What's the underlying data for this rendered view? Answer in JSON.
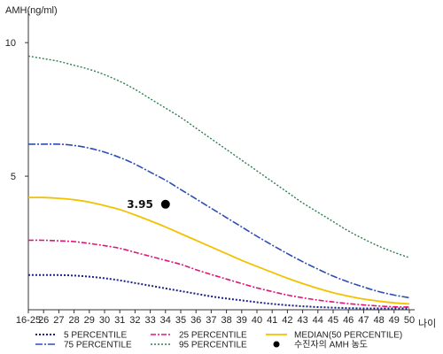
{
  "chart_data": {
    "type": "line",
    "ylabel": "AMH(ng/ml)",
    "xlabel": "나이",
    "ylim": [
      0,
      11
    ],
    "yticks": [
      5,
      10
    ],
    "categories": [
      "16-25",
      "26",
      "27",
      "28",
      "29",
      "30",
      "31",
      "32",
      "33",
      "34",
      "35",
      "36",
      "37",
      "38",
      "39",
      "40",
      "41",
      "42",
      "43",
      "44",
      "45",
      "46",
      "47",
      "48",
      "49",
      "50"
    ],
    "series": [
      {
        "name": "5 PERCENTILE",
        "color": "#1a237e",
        "dash": "2,2",
        "width": 2,
        "values": [
          1.3,
          1.3,
          1.3,
          1.28,
          1.24,
          1.18,
          1.1,
          1.0,
          0.9,
          0.8,
          0.7,
          0.6,
          0.5,
          0.42,
          0.35,
          0.28,
          0.22,
          0.17,
          0.13,
          0.1,
          0.08,
          0.06,
          0.05,
          0.05,
          0.05,
          0.05
        ]
      },
      {
        "name": "25 PERCENTILE",
        "color": "#e0157a",
        "dash": "6,2,2,2",
        "width": 1.6,
        "values": [
          2.6,
          2.6,
          2.58,
          2.55,
          2.48,
          2.4,
          2.3,
          2.15,
          2.0,
          1.85,
          1.7,
          1.5,
          1.32,
          1.15,
          0.98,
          0.82,
          0.68,
          0.55,
          0.45,
          0.36,
          0.29,
          0.23,
          0.18,
          0.14,
          0.11,
          0.1
        ]
      },
      {
        "name": "MEDIAN(50 PERCENTILE)",
        "color": "#f2c200",
        "dash": "",
        "width": 1.8,
        "values": [
          4.2,
          4.2,
          4.17,
          4.12,
          4.03,
          3.9,
          3.75,
          3.55,
          3.33,
          3.1,
          2.85,
          2.6,
          2.35,
          2.1,
          1.85,
          1.62,
          1.4,
          1.18,
          0.98,
          0.8,
          0.64,
          0.51,
          0.4,
          0.32,
          0.26,
          0.22
        ]
      },
      {
        "name": "75 PERCENTILE",
        "color": "#2b4db8",
        "dash": "8,2,2,2",
        "width": 1.6,
        "values": [
          6.2,
          6.2,
          6.2,
          6.15,
          6.05,
          5.9,
          5.7,
          5.45,
          5.15,
          4.85,
          4.5,
          4.15,
          3.8,
          3.45,
          3.1,
          2.75,
          2.42,
          2.1,
          1.8,
          1.52,
          1.26,
          1.04,
          0.85,
          0.68,
          0.55,
          0.45
        ]
      },
      {
        "name": "95 PERCENTILE",
        "color": "#2e7d4f",
        "dash": "2,2",
        "width": 1.4,
        "values": [
          9.5,
          9.4,
          9.3,
          9.15,
          9.0,
          8.8,
          8.55,
          8.25,
          7.9,
          7.55,
          7.2,
          6.8,
          6.4,
          6.0,
          5.6,
          5.2,
          4.8,
          4.4,
          4.0,
          3.65,
          3.3,
          2.95,
          2.65,
          2.38,
          2.15,
          1.95
        ]
      }
    ],
    "points": [
      {
        "name": "수진자의 AMH 농도",
        "x": "34",
        "y": 3.95,
        "label": "3.95",
        "color": "#000000"
      }
    ],
    "legend": [
      {
        "text": "5 PERCENTILE",
        "series": 0
      },
      {
        "text": "25 PERCENTILE",
        "series": 1
      },
      {
        "text": "MEDIAN(50 PERCENTILE)",
        "series": 2
      },
      {
        "text": "75 PERCENTILE",
        "series": 3
      },
      {
        "text": "95 PERCENTILE",
        "series": 4
      },
      {
        "text": "수진자의 AMH 농도",
        "point": 0
      }
    ],
    "legend_position": "bottom",
    "grid": false
  }
}
